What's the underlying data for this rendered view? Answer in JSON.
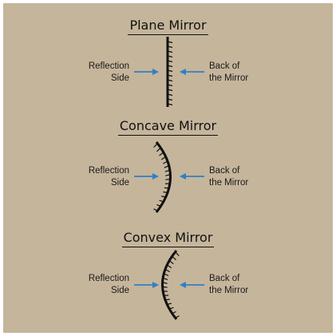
{
  "background_color": "#c5b59b",
  "arrow_color": "#2f7fc6",
  "mirror_color": "#111111",
  "sections": [
    {
      "title": "Plane Mirror",
      "left_line1": "Reflection",
      "left_line2": "Side",
      "right_line1": "Back of",
      "right_line2": "the Mirror"
    },
    {
      "title": "Concave Mirror",
      "left_line1": "Reflection",
      "left_line2": "Side",
      "right_line1": "Back of",
      "right_line2": "the Mirror"
    },
    {
      "title": "Convex Mirror",
      "left_line1": "Reflection",
      "left_line2": "Side",
      "right_line1": "Back of",
      "right_line2": "the Mirror"
    }
  ]
}
